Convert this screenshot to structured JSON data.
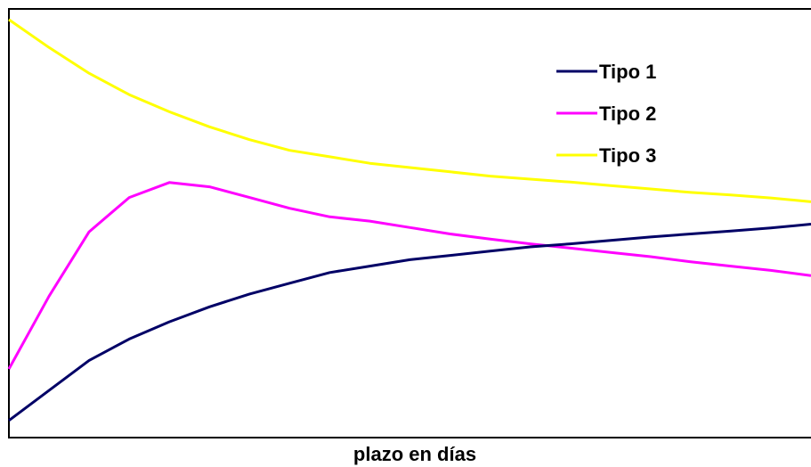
{
  "chart_data": {
    "type": "line",
    "title": "",
    "xlabel": "plazo en días",
    "ylabel": "",
    "xlim": [
      0,
      100
    ],
    "ylim": [
      0,
      100
    ],
    "grid": false,
    "legend_position": "top-right",
    "x": [
      0,
      5,
      10,
      15,
      20,
      25,
      30,
      35,
      40,
      45,
      50,
      55,
      60,
      65,
      70,
      75,
      80,
      85,
      90,
      95,
      100
    ],
    "series": [
      {
        "name": "Tipo 1",
        "color": "#000066",
        "values": [
          4,
          11,
          18,
          23,
          27,
          30.5,
          33.5,
          36,
          38.5,
          40,
          41.5,
          42.5,
          43.5,
          44.5,
          45.2,
          46,
          46.8,
          47.5,
          48.2,
          48.9,
          49.8
        ]
      },
      {
        "name": "Tipo 2",
        "color": "#FF00FF",
        "values": [
          16,
          33,
          48,
          56,
          59.5,
          58.5,
          56,
          53.5,
          51.5,
          50.5,
          49,
          47.5,
          46.3,
          45.2,
          44.2,
          43.2,
          42.2,
          41,
          40,
          39,
          37.8
        ]
      },
      {
        "name": "Tipo 3",
        "color": "#FFFF00",
        "values": [
          97.5,
          91,
          85,
          80,
          76,
          72.5,
          69.5,
          67,
          65.5,
          64,
          63,
          62,
          61,
          60.3,
          59.6,
          58.8,
          58,
          57.2,
          56.6,
          55.9,
          55
        ]
      }
    ]
  }
}
